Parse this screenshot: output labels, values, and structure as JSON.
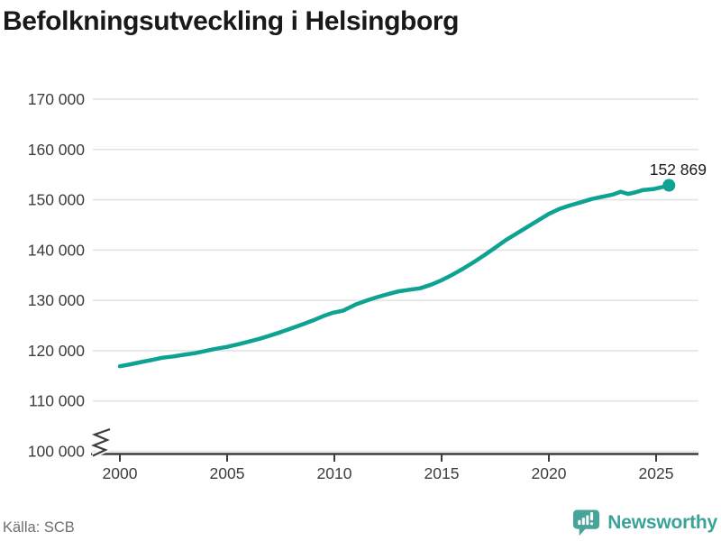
{
  "title": "Befolkningsutveckling i Helsingborg",
  "source": "Källa: SCB",
  "brand": {
    "name": "Newsworthy"
  },
  "colors": {
    "background": "#ffffff",
    "line": "#0ea293",
    "dot": "#0ea293",
    "title_text": "#191919",
    "tick_text": "#3c3c3c",
    "grid": "#e3e3e3",
    "axis": "#3c3c3c",
    "end_label_text": "#191919",
    "source_text": "#6f6f6f",
    "brand_teal": "#3aa298",
    "brand_icon_teal": "#48a49b"
  },
  "chart_data": {
    "type": "line",
    "title": "Befolkningsutveckling i Helsingborg",
    "xlabel": "",
    "ylabel": "",
    "legend": "none",
    "grid": "horizontal",
    "axis_break_at_y_base": true,
    "xlim": [
      2000,
      2027
    ],
    "ylim": [
      100000,
      170000
    ],
    "xticks": [
      2000,
      2005,
      2010,
      2015,
      2020,
      2025
    ],
    "xtick_labels": [
      "2000",
      "2005",
      "2010",
      "2015",
      "2020",
      "2025"
    ],
    "yticks": [
      100000,
      110000,
      120000,
      130000,
      140000,
      150000,
      160000,
      170000
    ],
    "ytick_labels": [
      "100 000",
      "110 000",
      "120 000",
      "130 000",
      "140 000",
      "150 000",
      "160 000",
      "170 000"
    ],
    "series": [
      {
        "name": "Befolkning i Helsingborg",
        "points": [
          [
            2000.0,
            116900
          ],
          [
            2000.5,
            117300
          ],
          [
            2001.0,
            117750
          ],
          [
            2001.5,
            118150
          ],
          [
            2002.0,
            118600
          ],
          [
            2002.5,
            118850
          ],
          [
            2003.0,
            119200
          ],
          [
            2003.5,
            119500
          ],
          [
            2004.0,
            119950
          ],
          [
            2004.4,
            120300
          ],
          [
            2005.0,
            120750
          ],
          [
            2005.5,
            121250
          ],
          [
            2006.0,
            121800
          ],
          [
            2006.5,
            122350
          ],
          [
            2007.0,
            123000
          ],
          [
            2007.5,
            123700
          ],
          [
            2008.0,
            124450
          ],
          [
            2008.5,
            125200
          ],
          [
            2009.0,
            126000
          ],
          [
            2009.5,
            126900
          ],
          [
            2009.9,
            127500
          ],
          [
            2010.4,
            127950
          ],
          [
            2011.0,
            129200
          ],
          [
            2011.5,
            129950
          ],
          [
            2012.0,
            130650
          ],
          [
            2012.5,
            131250
          ],
          [
            2013.0,
            131800
          ],
          [
            2013.4,
            132050
          ],
          [
            2014.0,
            132400
          ],
          [
            2014.5,
            133100
          ],
          [
            2015.0,
            134000
          ],
          [
            2015.5,
            135100
          ],
          [
            2016.0,
            136300
          ],
          [
            2016.5,
            137600
          ],
          [
            2017.0,
            139000
          ],
          [
            2017.5,
            140500
          ],
          [
            2018.0,
            142000
          ],
          [
            2018.5,
            143300
          ],
          [
            2019.0,
            144600
          ],
          [
            2019.5,
            145900
          ],
          [
            2020.0,
            147200
          ],
          [
            2020.5,
            148200
          ],
          [
            2021.0,
            148900
          ],
          [
            2021.5,
            149500
          ],
          [
            2022.0,
            150150
          ],
          [
            2022.5,
            150600
          ],
          [
            2023.0,
            151050
          ],
          [
            2023.35,
            151600
          ],
          [
            2023.7,
            151150
          ],
          [
            2024.0,
            151450
          ],
          [
            2024.4,
            151950
          ],
          [
            2024.9,
            152150
          ],
          [
            2025.2,
            152450
          ],
          [
            2025.6,
            152869
          ]
        ]
      }
    ],
    "end_point": {
      "x": 2025.6,
      "value": 152869,
      "label": "152 869"
    }
  }
}
